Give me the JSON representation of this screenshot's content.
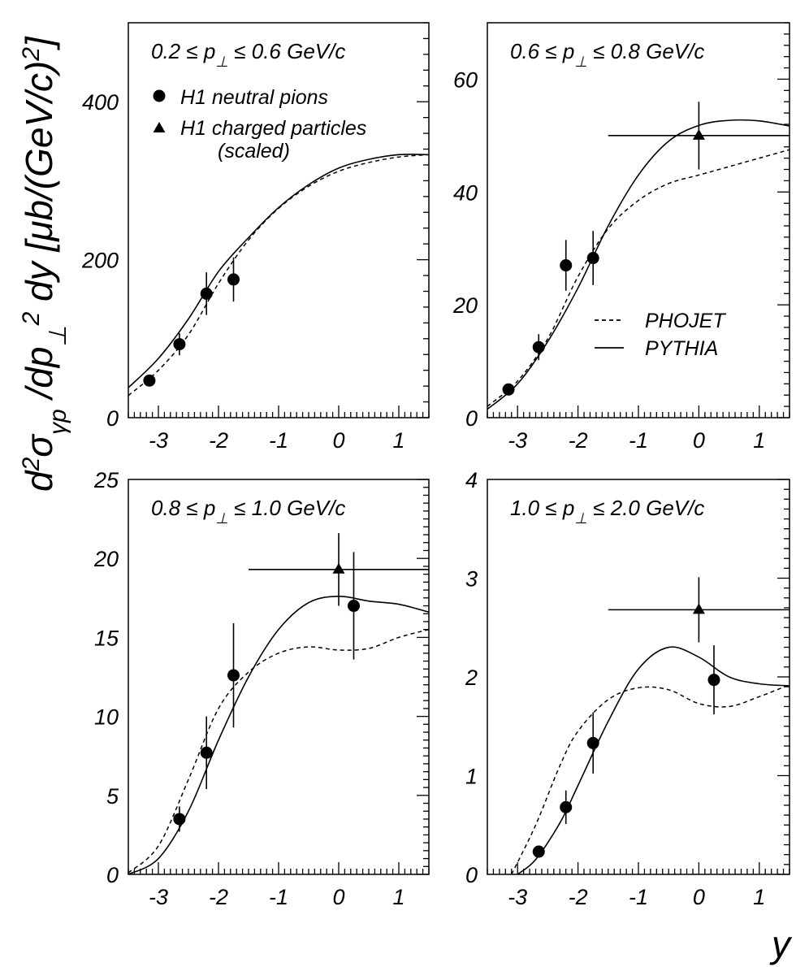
{
  "figure": {
    "ylabel": {
      "main": "d",
      "sup1": "2",
      "sigma": "σ",
      "sub": "γp",
      "mid": " /dp",
      "perp": "⊥",
      "sup2": "2",
      "tail": " dy  [μb/(GeV/c)",
      "sup3": "2",
      "close": "]"
    },
    "xlabel": "y"
  },
  "legend_markers": {
    "neutral": "H1 neutral pions",
    "charged": "H1 charged particles",
    "charged_note": "(scaled)"
  },
  "legend_lines": {
    "phojet": "PHOJET",
    "pythia": "PYTHIA"
  },
  "chart_data": [
    {
      "type": "scatter",
      "title": {
        "pre": "0.2 ≤  p",
        "sub": "⊥",
        "post": " ≤ 0.6 GeV/c"
      },
      "xlim": [
        -3.5,
        1.5
      ],
      "ylim": [
        0,
        500
      ],
      "xticks": [
        -3,
        -2,
        -1,
        0,
        1
      ],
      "yticks": [
        0,
        200,
        400
      ],
      "series": [
        {
          "name": "H1 neutral pions",
          "style": "circle",
          "points": [
            {
              "x": -3.15,
              "y": 47,
              "yerr": 6
            },
            {
              "x": -2.65,
              "y": 93,
              "yerr": 14
            },
            {
              "x": -2.2,
              "y": 157,
              "yerr": 27
            },
            {
              "x": -1.75,
              "y": 175,
              "yerr": 28
            }
          ]
        },
        {
          "name": "H1 charged particles (scaled)",
          "style": "triangle",
          "points": []
        },
        {
          "name": "PHOJET",
          "style": "dashed",
          "x": [
            -3.5,
            -3.0,
            -2.5,
            -2.0,
            -1.5,
            -1.0,
            -0.5,
            0.0,
            0.5,
            1.0,
            1.5
          ],
          "y": [
            28,
            60,
            105,
            170,
            225,
            265,
            293,
            312,
            323,
            330,
            333
          ]
        },
        {
          "name": "PYTHIA",
          "style": "solid",
          "x": [
            -3.5,
            -3.0,
            -2.5,
            -2.0,
            -1.5,
            -1.0,
            -0.5,
            0.0,
            0.5,
            1.0,
            1.5
          ],
          "y": [
            38,
            75,
            125,
            185,
            228,
            266,
            295,
            316,
            327,
            333,
            333
          ]
        }
      ]
    },
    {
      "type": "scatter",
      "title": {
        "pre": "0.6 ≤  p",
        "sub": "⊥",
        "post": " ≤ 0.8 GeV/c"
      },
      "xlim": [
        -3.5,
        1.5
      ],
      "ylim": [
        0,
        70
      ],
      "xticks": [
        -3,
        -2,
        -1,
        0,
        1
      ],
      "yticks": [
        0,
        20,
        40,
        60
      ],
      "series": [
        {
          "name": "H1 neutral pions",
          "style": "circle",
          "points": [
            {
              "x": -3.15,
              "y": 5,
              "yerr": 0.8
            },
            {
              "x": -2.65,
              "y": 12.5,
              "yerr": 2.3
            },
            {
              "x": -2.2,
              "y": 27,
              "yerr": 4.5
            },
            {
              "x": -1.75,
              "y": 28.3,
              "yerr": 4.8
            }
          ]
        },
        {
          "name": "H1 charged particles (scaled)",
          "style": "triangle",
          "points": [
            {
              "x": 0.0,
              "y": 50,
              "yerr": 6,
              "xmin": -1.5,
              "xmax": 1.5
            }
          ]
        },
        {
          "name": "PHOJET",
          "style": "dashed",
          "x": [
            -3.5,
            -3.0,
            -2.5,
            -2.0,
            -1.5,
            -1.0,
            -0.5,
            0.0,
            0.5,
            1.0,
            1.5
          ],
          "y": [
            2,
            6.5,
            14,
            25,
            33.5,
            38.5,
            41.5,
            43,
            44.5,
            46,
            47.5
          ]
        },
        {
          "name": "PYTHIA",
          "style": "solid",
          "x": [
            -3.5,
            -3.0,
            -2.5,
            -2.0,
            -1.5,
            -1.0,
            -0.5,
            0.0,
            0.5,
            1.0,
            1.5
          ],
          "y": [
            1.5,
            6,
            13.5,
            23,
            34,
            43,
            49,
            51.8,
            52.7,
            52.6,
            51.7
          ]
        }
      ]
    },
    {
      "type": "scatter",
      "title": {
        "pre": "0.8 ≤  p",
        "sub": "⊥",
        "post": " ≤ 1.0 GeV/c"
      },
      "xlim": [
        -3.5,
        1.5
      ],
      "ylim": [
        0,
        25
      ],
      "xticks": [
        -3,
        -2,
        -1,
        0,
        1
      ],
      "yticks": [
        0,
        5,
        10,
        15,
        20,
        25
      ],
      "series": [
        {
          "name": "H1 neutral pions",
          "style": "circle",
          "points": [
            {
              "x": -2.65,
              "y": 3.5,
              "yerr": 0.8
            },
            {
              "x": -2.2,
              "y": 7.7,
              "yerr": 2.3
            },
            {
              "x": -1.75,
              "y": 12.6,
              "yerr": 3.3
            },
            {
              "x": 0.25,
              "y": 17,
              "yerr": 3.4
            }
          ]
        },
        {
          "name": "H1 charged particles (scaled)",
          "style": "triangle",
          "points": [
            {
              "x": 0.0,
              "y": 19.3,
              "yerr": 2.3,
              "xmin": -1.5,
              "xmax": 1.5
            }
          ]
        },
        {
          "name": "PHOJET",
          "style": "dashed",
          "x": [
            -3.5,
            -3.0,
            -2.5,
            -2.0,
            -1.5,
            -1.0,
            -0.5,
            0.0,
            0.5,
            1.0,
            1.5
          ],
          "y": [
            0.1,
            1.8,
            6,
            10.5,
            12.8,
            14,
            14.4,
            14.2,
            14.3,
            15,
            15.5
          ]
        },
        {
          "name": "PYTHIA",
          "style": "solid",
          "x": [
            -3.5,
            -3.0,
            -2.5,
            -2.0,
            -1.5,
            -1.0,
            -0.5,
            0.0,
            0.5,
            1.0,
            1.5
          ],
          "y": [
            0,
            1,
            4,
            8.5,
            12.5,
            15.5,
            17.2,
            17.6,
            17.3,
            17.1,
            16.6
          ]
        }
      ]
    },
    {
      "type": "scatter",
      "title": {
        "pre": "1.0 ≤  p",
        "sub": "⊥",
        "post": " ≤ 2.0 GeV/c"
      },
      "xlim": [
        -3.5,
        1.5
      ],
      "ylim": [
        0,
        4
      ],
      "xticks": [
        -3,
        -2,
        -1,
        0,
        1
      ],
      "yticks": [
        0,
        1,
        2,
        3,
        4
      ],
      "series": [
        {
          "name": "H1 neutral pions",
          "style": "circle",
          "points": [
            {
              "x": -2.65,
              "y": 0.23,
              "yerr": 0.06
            },
            {
              "x": -2.2,
              "y": 0.68,
              "yerr": 0.17
            },
            {
              "x": -1.75,
              "y": 1.33,
              "yerr": 0.31
            },
            {
              "x": 0.25,
              "y": 1.97,
              "yerr": 0.35
            }
          ]
        },
        {
          "name": "H1 charged particles (scaled)",
          "style": "triangle",
          "points": [
            {
              "x": 0.0,
              "y": 2.68,
              "yerr": 0.33,
              "xmin": -1.5,
              "xmax": 1.5
            }
          ]
        },
        {
          "name": "PHOJET",
          "style": "dashed",
          "x": [
            -3.1,
            -2.7,
            -2.3,
            -2.0,
            -1.5,
            -1.0,
            -0.5,
            0.0,
            0.5,
            1.0,
            1.5
          ],
          "y": [
            0.0,
            0.5,
            1.1,
            1.45,
            1.77,
            1.89,
            1.87,
            1.73,
            1.7,
            1.8,
            1.92
          ]
        },
        {
          "name": "PYTHIA",
          "style": "solid",
          "x": [
            -3.0,
            -2.7,
            -2.3,
            -2.0,
            -1.5,
            -1.0,
            -0.5,
            0.0,
            0.5,
            1.0,
            1.5
          ],
          "y": [
            0.0,
            0.15,
            0.52,
            0.9,
            1.55,
            2.08,
            2.3,
            2.2,
            2.0,
            1.93,
            1.91
          ]
        }
      ]
    }
  ]
}
